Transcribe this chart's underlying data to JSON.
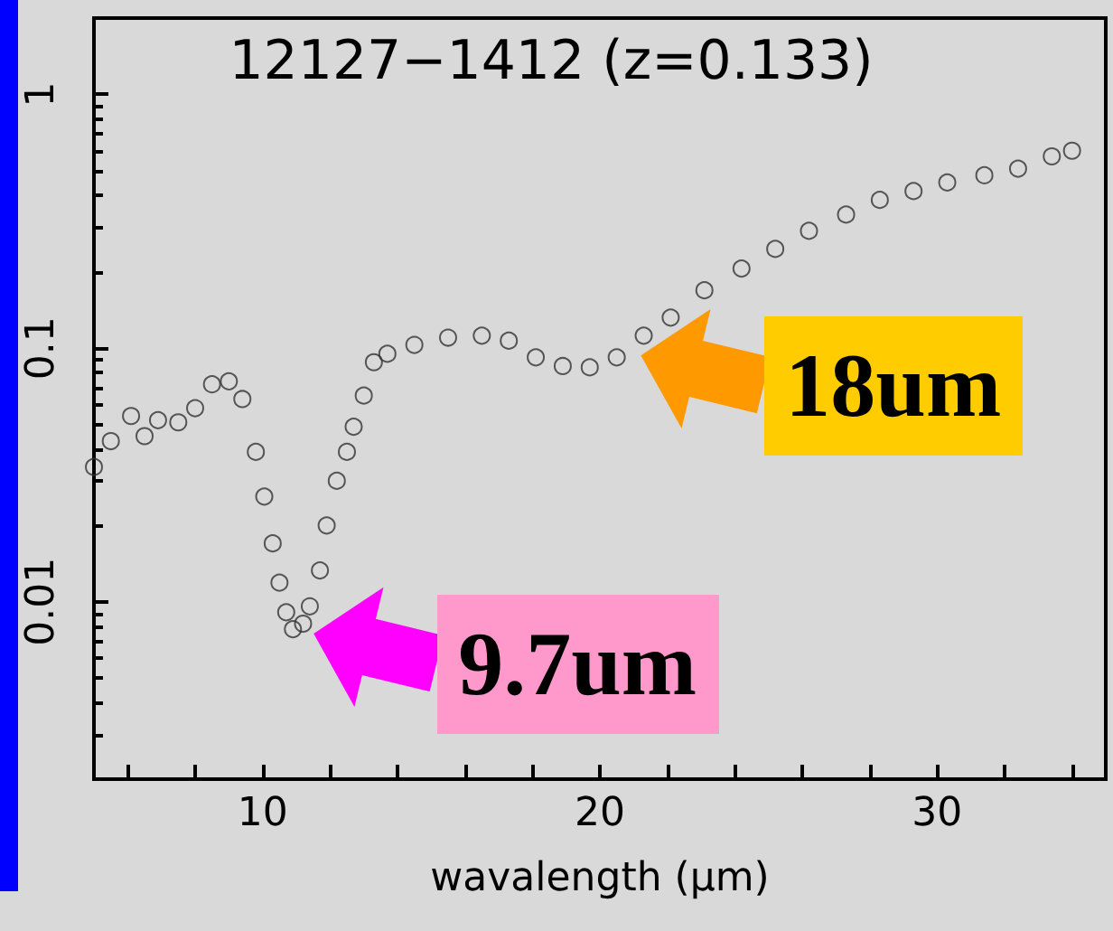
{
  "chart_data": {
    "type": "scatter",
    "title": "12127−1412 (z=0.133)",
    "xlabel": "wavalength (μm)",
    "marker": "circle",
    "grid": false,
    "log": "y",
    "xlim": [
      5,
      35
    ],
    "xticks": [
      {
        "value": 6,
        "label": null
      },
      {
        "value": 8,
        "label": null
      },
      10,
      {
        "value": 12,
        "label": null
      },
      {
        "value": 14,
        "label": null
      },
      {
        "value": 16,
        "label": null
      },
      {
        "value": 18,
        "label": null
      },
      20,
      {
        "value": 22,
        "label": null
      },
      {
        "value": 24,
        "label": null
      },
      {
        "value": 26,
        "label": null
      },
      {
        "value": 28,
        "label": null
      },
      30,
      {
        "value": 32,
        "label": null
      },
      {
        "value": 34,
        "label": null
      }
    ],
    "ylim": [
      0.002,
      2
    ],
    "yticks": [
      0.01,
      0.1,
      1
    ],
    "series": [
      {
        "color": "#333333",
        "x": [
          5.0,
          5.5,
          6.1,
          6.5,
          6.9,
          7.5,
          8.0,
          8.5,
          9.0,
          9.4,
          9.8,
          10.05,
          10.3,
          10.5,
          10.7,
          10.9,
          11.2,
          11.4,
          11.7,
          11.9,
          12.2,
          12.5,
          12.7,
          13.0,
          13.3,
          13.7,
          14.5,
          15.5,
          16.5,
          17.3,
          18.1,
          18.9,
          19.7,
          20.5,
          21.3,
          22.1,
          23.1,
          24.2,
          25.2,
          26.2,
          27.3,
          28.3,
          29.3,
          30.3,
          31.4,
          32.4,
          33.4,
          34.0
        ],
        "values": [
          0.034,
          0.043,
          0.054,
          0.045,
          0.052,
          0.051,
          0.058,
          0.072,
          0.074,
          0.063,
          0.039,
          0.026,
          0.017,
          0.0119,
          0.0091,
          0.0078,
          0.0082,
          0.0096,
          0.0133,
          0.02,
          0.03,
          0.039,
          0.049,
          0.065,
          0.088,
          0.095,
          0.103,
          0.11,
          0.112,
          0.107,
          0.092,
          0.085,
          0.084,
          0.092,
          0.112,
          0.132,
          0.169,
          0.206,
          0.246,
          0.29,
          0.336,
          0.384,
          0.416,
          0.45,
          0.48,
          0.51,
          0.57,
          0.6
        ]
      }
    ],
    "annotations": [
      {
        "text": "18um",
        "x": 21,
        "y": 0.1
      },
      {
        "text": "9.7um",
        "x": 11.3,
        "y": 0.008
      }
    ]
  }
}
